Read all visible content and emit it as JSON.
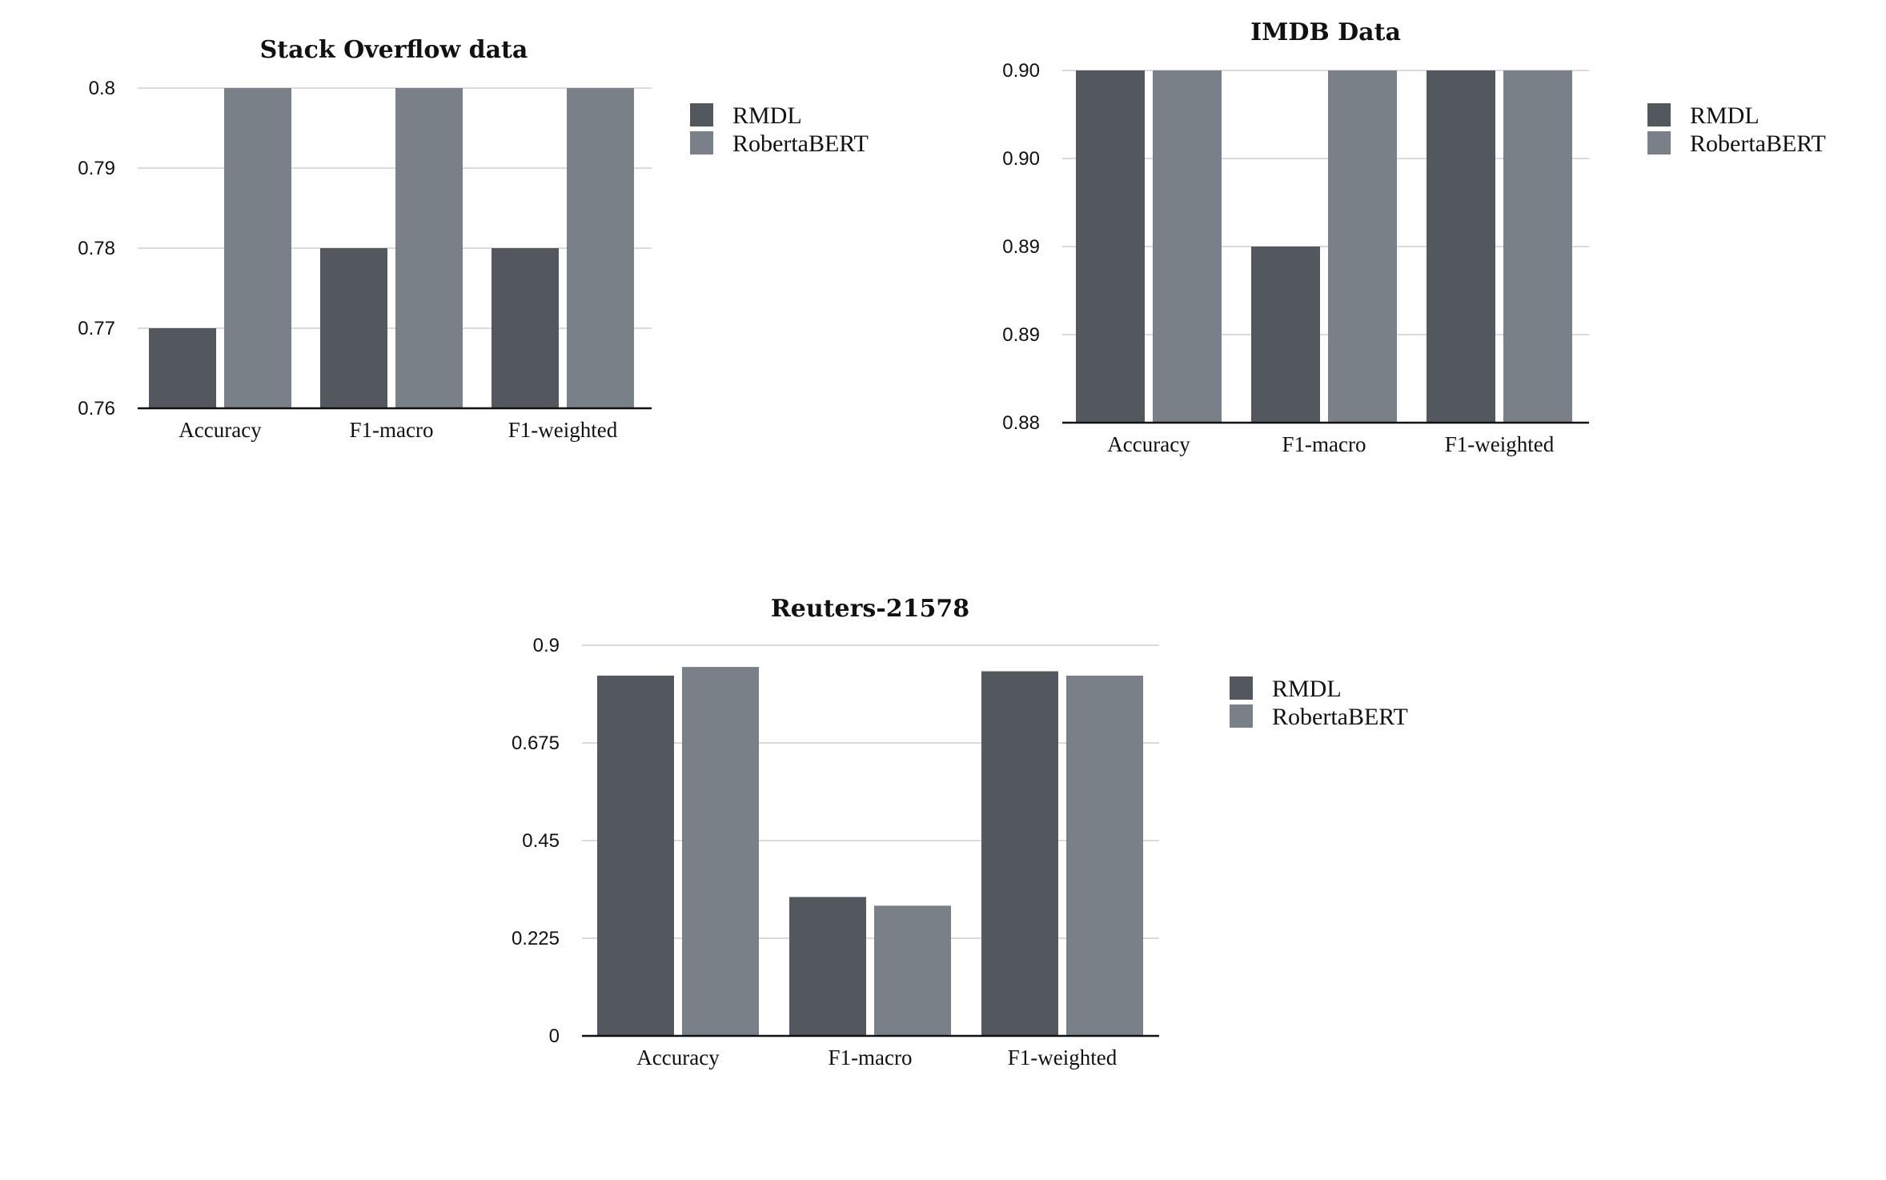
{
  "colors": {
    "RMDL": "#53575e",
    "RobertaBERT": "#7a8088"
  },
  "chart_data": [
    {
      "type": "bar",
      "title": "Stack Overflow data",
      "categories": [
        "Accuracy",
        "F1-macro",
        "F1-weighted"
      ],
      "series": [
        {
          "name": "RMDL",
          "values": [
            0.77,
            0.78,
            0.78
          ]
        },
        {
          "name": "RobertaBERT",
          "values": [
            0.8,
            0.8,
            0.8
          ]
        }
      ],
      "ylim": [
        0.76,
        0.8
      ],
      "yticks": [
        "0.76",
        "0.77",
        "0.78",
        "0.79",
        "0.8"
      ],
      "grid": true,
      "legend": "right"
    },
    {
      "type": "bar",
      "title": "IMDB Data",
      "categories": [
        "Accuracy",
        "F1-macro",
        "F1-weighted"
      ],
      "series": [
        {
          "name": "RMDL",
          "values": [
            0.9,
            0.89,
            0.9
          ]
        },
        {
          "name": "RobertaBERT",
          "values": [
            0.9,
            0.9,
            0.9
          ]
        }
      ],
      "ylim": [
        0.88,
        0.9
      ],
      "yticks": [
        "0.88",
        "0.89",
        "0.89",
        "0.90",
        "0.90"
      ],
      "grid": true,
      "legend": "right"
    },
    {
      "type": "bar",
      "title": "Reuters-21578",
      "categories": [
        "Accuracy",
        "F1-macro",
        "F1-weighted"
      ],
      "series": [
        {
          "name": "RMDL",
          "values": [
            0.83,
            0.32,
            0.84
          ]
        },
        {
          "name": "RobertaBERT",
          "values": [
            0.85,
            0.3,
            0.83
          ]
        }
      ],
      "ylim": [
        0,
        0.9
      ],
      "yticks": [
        "0",
        "0.225",
        "0.45",
        "0.675",
        "0.9"
      ],
      "grid": true,
      "legend": "right"
    }
  ]
}
